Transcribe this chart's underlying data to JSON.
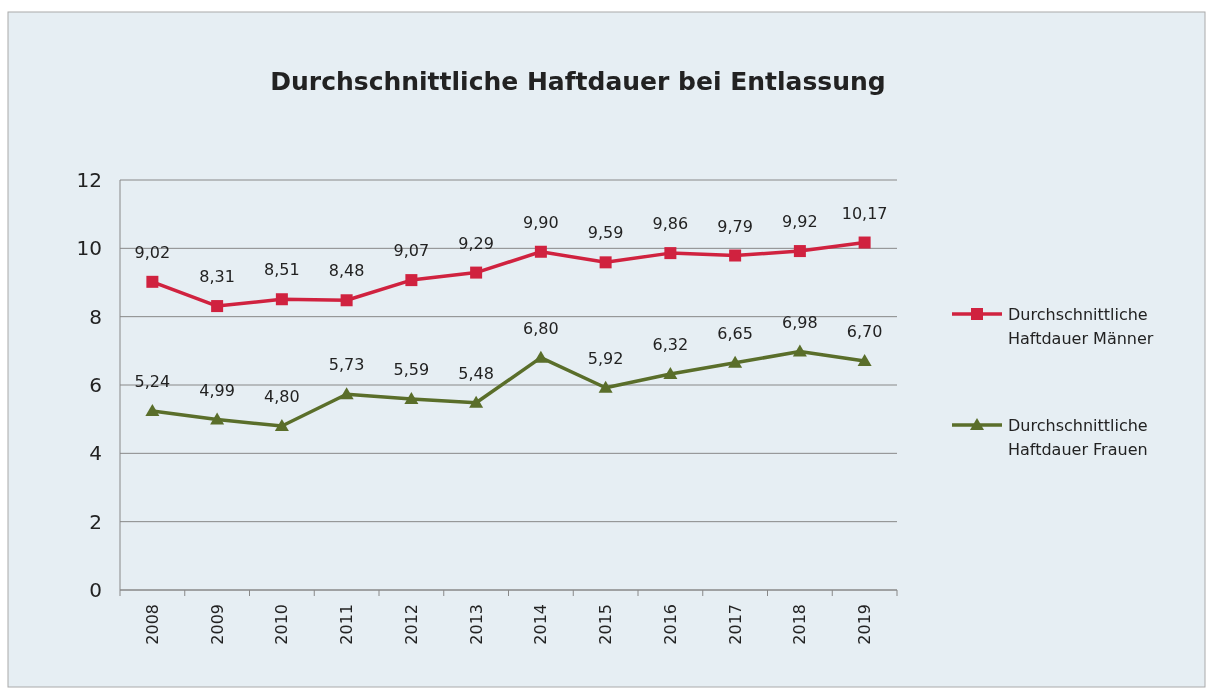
{
  "chart_data": {
    "type": "line",
    "title": "Durchschnittliche Haftdauer bei Entlassung",
    "categories": [
      "2008",
      "2009",
      "2010",
      "2011",
      "2012",
      "2013",
      "2014",
      "2015",
      "2016",
      "2017",
      "2018",
      "2019"
    ],
    "series": [
      {
        "name": "Durchschnittliche Haftdauer Männer",
        "color": "#d0223f",
        "marker": "square",
        "values": [
          9.02,
          8.31,
          8.51,
          8.48,
          9.07,
          9.29,
          9.9,
          9.59,
          9.86,
          9.79,
          9.92,
          10.17
        ],
        "value_labels": [
          "9,02",
          "8,31",
          "8,51",
          "8,48",
          "9,07",
          "9,29",
          "9,90",
          "9,59",
          "9,86",
          "9,79",
          "9,92",
          "10,17"
        ]
      },
      {
        "name": "Durchschnittliche Haftdauer Frauen",
        "color": "#5a6e2a",
        "marker": "triangle",
        "values": [
          5.24,
          4.99,
          4.8,
          5.73,
          5.59,
          5.48,
          6.8,
          5.92,
          6.32,
          6.65,
          6.98,
          6.7
        ],
        "value_labels": [
          "5,24",
          "4,99",
          "4,80",
          "5,73",
          "5,59",
          "5,48",
          "6,80",
          "5,92",
          "6,32",
          "6,65",
          "6,98",
          "6,70"
        ]
      }
    ],
    "ylim": [
      0,
      12
    ],
    "yticks": [
      0,
      2,
      4,
      6,
      8,
      10,
      12
    ],
    "grid": "y",
    "legend": "right",
    "line_style": "solid"
  }
}
